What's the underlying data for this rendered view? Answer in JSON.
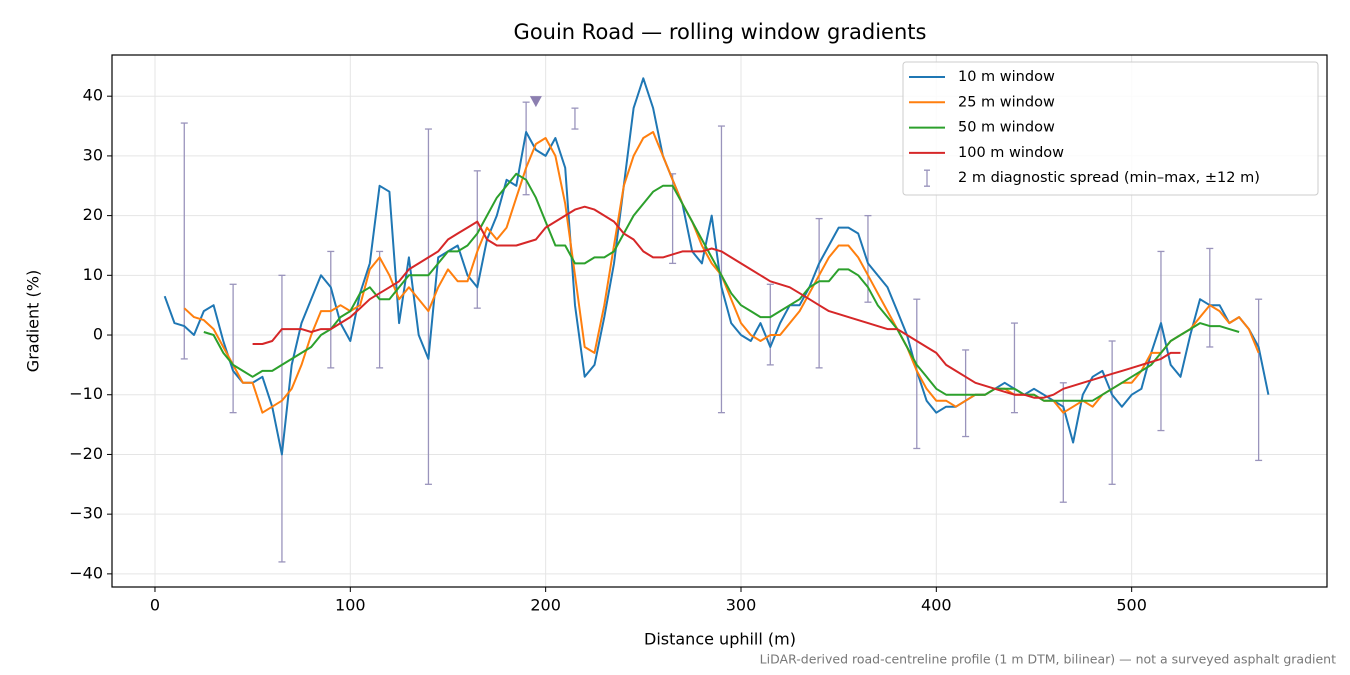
{
  "chart_data": {
    "type": "line",
    "title": "Gouin Road — rolling window gradients",
    "xlabel": "Distance uphill (m)",
    "ylabel": "Gradient (%)",
    "footnote": "LiDAR-derived road-centreline profile (1 m DTM, bilinear) — not a surveyed asphalt gradient",
    "xlim": [
      -22,
      600
    ],
    "ylim": [
      -42.2,
      46.9
    ],
    "xticks": [
      0,
      100,
      200,
      300,
      400,
      500
    ],
    "yticks": [
      {
        "value": -40,
        "label": "−40"
      },
      {
        "value": -30,
        "label": "−30"
      },
      {
        "value": -20,
        "label": "−20"
      },
      {
        "value": -10,
        "label": "−10"
      },
      0,
      10,
      20,
      30,
      40
    ],
    "grid": true,
    "legend": "upper right",
    "x": [
      5,
      10,
      15,
      20,
      25,
      30,
      35,
      40,
      45,
      50,
      55,
      60,
      65,
      70,
      75,
      80,
      85,
      90,
      95,
      100,
      105,
      110,
      115,
      120,
      125,
      130,
      135,
      140,
      145,
      150,
      155,
      160,
      165,
      170,
      175,
      180,
      185,
      190,
      195,
      200,
      205,
      210,
      215,
      220,
      225,
      230,
      235,
      240,
      245,
      250,
      255,
      260,
      265,
      270,
      275,
      280,
      285,
      290,
      295,
      300,
      305,
      310,
      315,
      320,
      325,
      330,
      335,
      340,
      345,
      350,
      355,
      360,
      365,
      370,
      375,
      380,
      385,
      390,
      395,
      400,
      405,
      410,
      415,
      420,
      425,
      430,
      435,
      440,
      445,
      450,
      455,
      460,
      465,
      470,
      475,
      480,
      485,
      490,
      495,
      500,
      505,
      510,
      515,
      520,
      525,
      530,
      535,
      540,
      545,
      550,
      555,
      560,
      565,
      570
    ],
    "series": [
      {
        "name": "10 m window",
        "color": "#1f77b4",
        "values": [
          6.5,
          2,
          1.5,
          0,
          4,
          5,
          -1,
          -6,
          -8,
          -8,
          -7,
          -12,
          -20,
          -5,
          2,
          6,
          10,
          8,
          2,
          -1,
          7,
          12,
          25,
          24,
          2,
          13,
          0,
          -4,
          13,
          14,
          15,
          10,
          8,
          16,
          20,
          26,
          25,
          34,
          31,
          30,
          33,
          28,
          5,
          -7,
          -5,
          3,
          12,
          25,
          38,
          43,
          38,
          30,
          26,
          22,
          14,
          12,
          20,
          8,
          2,
          0,
          -1,
          2,
          -2,
          2,
          5,
          5,
          8,
          12,
          15,
          18,
          18,
          17,
          12,
          10,
          8,
          4,
          0,
          -6,
          -11,
          -13,
          -12,
          -12,
          -11,
          -10,
          -10,
          -9,
          -8,
          -9,
          -10,
          -9,
          -10,
          -11,
          -12,
          -18,
          -10,
          -7,
          -6,
          -10,
          -12,
          -10,
          -9,
          -3,
          2,
          -5,
          -7,
          0,
          6,
          5,
          5,
          2,
          3,
          1,
          -2,
          -10
        ]
      },
      {
        "name": "25 m window",
        "color": "#ff7f0e",
        "values": [
          null,
          null,
          4.5,
          3,
          2.5,
          1,
          -2,
          -5,
          -8,
          -8,
          -13,
          -12,
          -11,
          -9,
          -5,
          0,
          4,
          4,
          5,
          4,
          5,
          11,
          13,
          10,
          6,
          8,
          6,
          4,
          8,
          11,
          9,
          9,
          14,
          18,
          16,
          18,
          23,
          28,
          32,
          33,
          30,
          22,
          10,
          -2,
          -3,
          5,
          15,
          25,
          30,
          33,
          34,
          30,
          26,
          22,
          19,
          15,
          12,
          10,
          6,
          2,
          0,
          -1,
          0,
          0,
          2,
          4,
          7,
          10,
          13,
          15,
          15,
          13,
          10,
          7,
          4,
          1,
          -2,
          -6,
          -9,
          -11,
          -11,
          -12,
          -11,
          -10,
          -10,
          -9,
          -9,
          -10,
          -10,
          -10,
          -11,
          -11,
          -13,
          -12,
          -11,
          -12,
          -10,
          -9,
          -8,
          -8,
          -6,
          -3,
          -3,
          -1,
          0,
          1,
          3,
          5,
          4,
          2,
          3,
          1,
          -3,
          null
        ]
      },
      {
        "name": "50 m window",
        "color": "#2ca02c",
        "values": [
          null,
          null,
          null,
          null,
          0.5,
          0,
          -3,
          -5,
          -6,
          -7,
          -6,
          -6,
          -5,
          -4,
          -3,
          -2,
          0,
          1,
          3,
          4,
          7,
          8,
          6,
          6,
          8,
          10,
          10,
          10,
          12,
          14,
          14,
          15,
          17,
          20,
          23,
          25,
          27,
          26,
          23,
          19,
          15,
          15,
          12,
          12,
          13,
          13,
          14,
          17,
          20,
          22,
          24,
          25,
          25,
          22,
          19,
          16,
          13,
          10,
          7,
          5,
          4,
          3,
          3,
          4,
          5,
          6,
          8,
          9,
          9,
          11,
          11,
          10,
          8,
          5,
          3,
          1,
          -2,
          -5,
          -7,
          -9,
          -10,
          -10,
          -10,
          -10,
          -10,
          -9,
          -9,
          -9,
          -10,
          -10,
          -11,
          -11,
          -11,
          -11,
          -11,
          -11,
          -10,
          -9,
          -8,
          -7,
          -6,
          -5,
          -3,
          -1,
          0,
          1,
          2,
          1.5,
          1.5,
          1,
          0.5,
          null,
          null,
          null
        ]
      },
      {
        "name": "100 m window",
        "color": "#d62728",
        "values": [
          null,
          null,
          null,
          null,
          null,
          null,
          null,
          null,
          null,
          -1.5,
          -1.5,
          -1,
          1,
          1,
          1,
          0.5,
          1,
          1,
          2,
          3,
          4.5,
          6,
          7,
          8,
          9,
          11,
          12,
          13,
          14,
          16,
          17,
          18,
          19,
          16,
          15,
          15,
          15,
          15.5,
          16,
          18,
          19,
          20,
          21,
          21.5,
          21,
          20,
          19,
          17,
          16,
          14,
          13,
          13,
          13.5,
          14,
          14,
          14,
          14.5,
          14,
          13,
          12,
          11,
          10,
          9,
          8.5,
          8,
          7,
          6,
          5,
          4,
          3.5,
          3,
          2.5,
          2,
          1.5,
          1,
          1,
          0,
          -1,
          -2,
          -3,
          -5,
          -6,
          -7,
          -8,
          -8.5,
          -9,
          -9.5,
          -10,
          -10,
          -10.5,
          -10.5,
          -10,
          -9,
          -8.5,
          -8,
          -7.5,
          -7,
          -6.5,
          -6,
          -5.5,
          -5,
          -4.5,
          -4,
          -3,
          -3,
          null,
          null,
          null,
          null,
          null,
          null,
          null,
          null,
          null
        ]
      }
    ],
    "errorbars": {
      "name": "2 m diagnostic spread (min–max, ±12 m)",
      "color": "#9a94bc",
      "x": [
        15,
        40,
        65,
        90,
        115,
        140,
        165,
        190,
        215,
        265,
        290,
        315,
        340,
        365,
        390,
        415,
        440,
        465,
        490,
        515,
        540,
        565
      ],
      "low": [
        -4,
        -13,
        -38,
        -5.5,
        -5.5,
        -25,
        4.5,
        23.5,
        34.5,
        12,
        -13,
        -5,
        -5.5,
        5.5,
        -19,
        -17,
        -13,
        -28,
        -25,
        -16,
        -2,
        -21
      ],
      "high": [
        35.5,
        8.5,
        10,
        14,
        14,
        34.5,
        27.5,
        39,
        38,
        27,
        35,
        8.5,
        19.5,
        20,
        6,
        -2.5,
        2,
        -8,
        -1,
        14,
        14.5,
        6
      ]
    },
    "marker": {
      "x": 195,
      "y": 39,
      "color": "#8c7fb0"
    }
  }
}
